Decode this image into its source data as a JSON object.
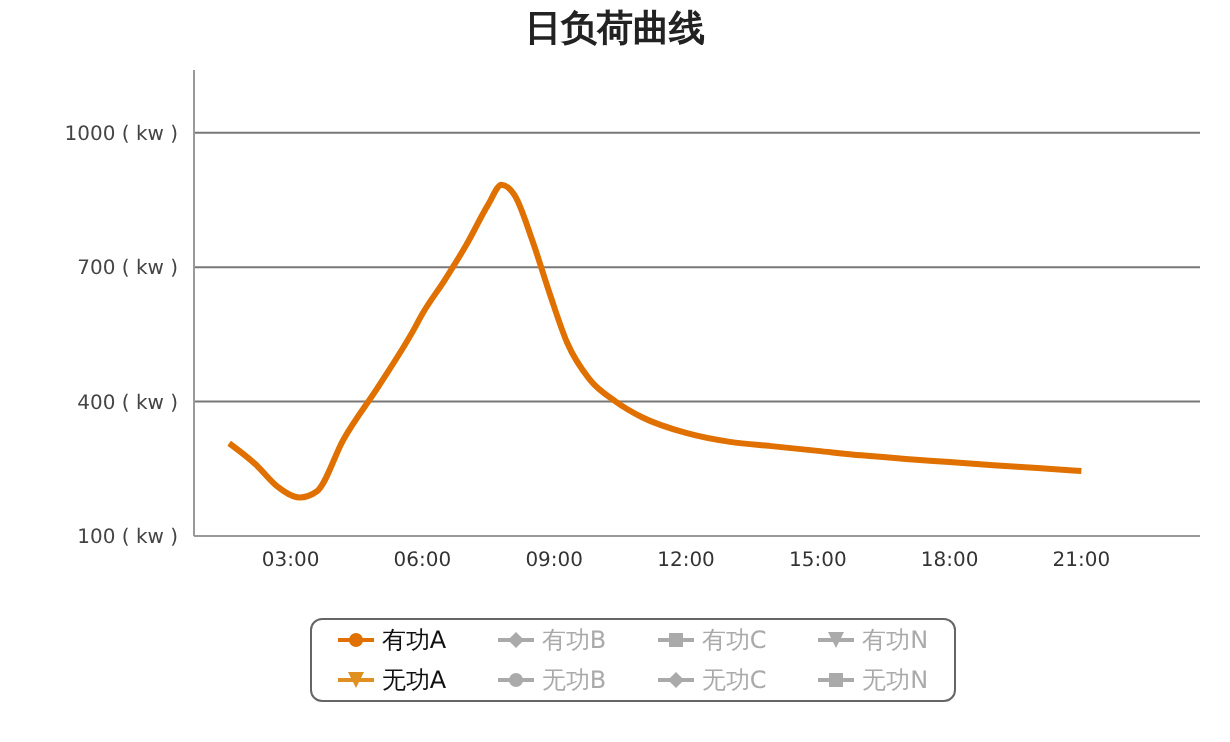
{
  "chart_data": {
    "type": "line",
    "title": "日负荷曲线",
    "xlim": [
      0.8,
      23.7
    ],
    "ylim": [
      100,
      1140
    ],
    "xticks": [
      {
        "value": 3,
        "label": "03:00"
      },
      {
        "value": 6,
        "label": "06:00"
      },
      {
        "value": 9,
        "label": "09:00"
      },
      {
        "value": 12,
        "label": "12:00"
      },
      {
        "value": 15,
        "label": "15:00"
      },
      {
        "value": 18,
        "label": "18:00"
      },
      {
        "value": 21,
        "label": "21:00"
      }
    ],
    "yticks": [
      {
        "value": 100,
        "label": "100 ( kw )"
      },
      {
        "value": 400,
        "label": "400 ( kw )"
      },
      {
        "value": 700,
        "label": "700 ( kw )"
      },
      {
        "value": 1000,
        "label": "1000 ( kw )"
      }
    ],
    "grid": "y",
    "legend": "bottom",
    "marker": "none",
    "line_style": "solid",
    "x": [
      1.6,
      2.2,
      2.7,
      3.2,
      3.6,
      4.2,
      5.0,
      5.8,
      6.0,
      6.5,
      7.0,
      7.5,
      7.8,
      8.1,
      8.5,
      8.9,
      9.3,
      9.8,
      10.4,
      11.0,
      12.0,
      13.0,
      14.0,
      15.0,
      16.0,
      17.0,
      18.0,
      19.0,
      20.0,
      21.0
    ],
    "series": [
      {
        "name": "有功A",
        "color": "#e07000",
        "values": [
          307,
          260,
          210,
          186,
          200,
          315,
          434,
          560,
          596,
          670,
          750,
          840,
          884,
          860,
          760,
          640,
          530,
          450,
          400,
          365,
          330,
          310,
          300,
          290,
          280,
          272,
          265,
          258,
          252,
          245
        ]
      },
      {
        "name": "无功A",
        "color": "#e09020",
        "values": [
          null,
          null,
          null,
          null,
          null,
          null,
          null,
          null,
          null,
          null,
          null,
          null,
          null,
          null,
          null,
          null,
          null,
          null,
          null,
          null,
          null,
          null,
          null,
          null,
          null,
          null,
          null,
          null,
          null,
          null
        ]
      },
      {
        "name": "有功B",
        "color": "#aaaaaa",
        "values": [
          null,
          null,
          null,
          null,
          null,
          null,
          null,
          null,
          null,
          null,
          null,
          null,
          null,
          null,
          null,
          null,
          null,
          null,
          null,
          null,
          null,
          null,
          null,
          null,
          null,
          null,
          null,
          null,
          null,
          null
        ]
      },
      {
        "name": "无功B",
        "color": "#aaaaaa",
        "values": [
          null,
          null,
          null,
          null,
          null,
          null,
          null,
          null,
          null,
          null,
          null,
          null,
          null,
          null,
          null,
          null,
          null,
          null,
          null,
          null,
          null,
          null,
          null,
          null,
          null,
          null,
          null,
          null,
          null,
          null
        ]
      },
      {
        "name": "有功C",
        "color": "#aaaaaa",
        "values": [
          null,
          null,
          null,
          null,
          null,
          null,
          null,
          null,
          null,
          null,
          null,
          null,
          null,
          null,
          null,
          null,
          null,
          null,
          null,
          null,
          null,
          null,
          null,
          null,
          null,
          null,
          null,
          null,
          null,
          null
        ]
      },
      {
        "name": "无功C",
        "color": "#aaaaaa",
        "values": [
          null,
          null,
          null,
          null,
          null,
          null,
          null,
          null,
          null,
          null,
          null,
          null,
          null,
          null,
          null,
          null,
          null,
          null,
          null,
          null,
          null,
          null,
          null,
          null,
          null,
          null,
          null,
          null,
          null,
          null
        ]
      },
      {
        "name": "有功N",
        "color": "#aaaaaa",
        "values": [
          null,
          null,
          null,
          null,
          null,
          null,
          null,
          null,
          null,
          null,
          null,
          null,
          null,
          null,
          null,
          null,
          null,
          null,
          null,
          null,
          null,
          null,
          null,
          null,
          null,
          null,
          null,
          null,
          null,
          null
        ]
      },
      {
        "name": "无功N",
        "color": "#aaaaaa",
        "values": [
          null,
          null,
          null,
          null,
          null,
          null,
          null,
          null,
          null,
          null,
          null,
          null,
          null,
          null,
          null,
          null,
          null,
          null,
          null,
          null,
          null,
          null,
          null,
          null,
          null,
          null,
          null,
          null,
          null,
          null
        ]
      }
    ]
  }
}
